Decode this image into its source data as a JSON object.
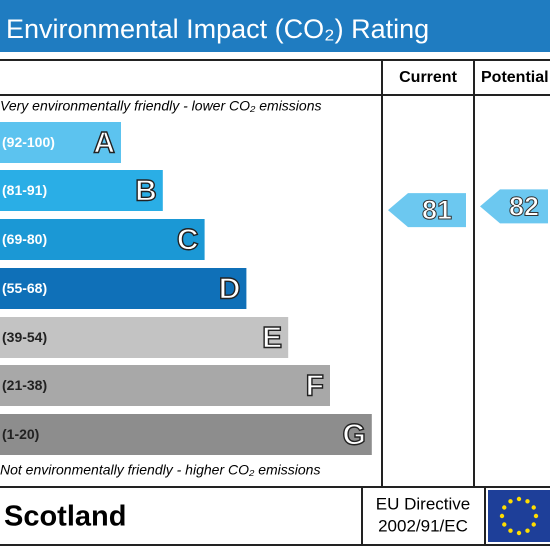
{
  "chart_data": {
    "type": "rating",
    "title": "Environmental Impact (CO₂) Rating",
    "columns": [
      "Current",
      "Potential"
    ],
    "top_note": "Very environmentally friendly - lower CO₂ emissions",
    "bottom_note": "Not environmentally friendly - higher CO₂ emissions",
    "bands": [
      {
        "range": "(92-100)",
        "letter": "A",
        "color": "#5cc3ef"
      },
      {
        "range": "(81-91)",
        "letter": "B",
        "color": "#2aaee6"
      },
      {
        "range": "(69-80)",
        "letter": "C",
        "color": "#1b98d5"
      },
      {
        "range": "(55-68)",
        "letter": "D",
        "color": "#0f70b8"
      },
      {
        "range": "(39-54)",
        "letter": "E",
        "color": "#c3c3c3"
      },
      {
        "range": "(21-38)",
        "letter": "F",
        "color": "#a8a8a8"
      },
      {
        "range": "(1-20)",
        "letter": "G",
        "color": "#8d8d8d"
      }
    ],
    "current": 81,
    "potential": 82,
    "arrow_color": "#6cc8f0",
    "region": "Scotland",
    "directive": [
      "EU Directive",
      "2002/91/EC"
    ]
  }
}
